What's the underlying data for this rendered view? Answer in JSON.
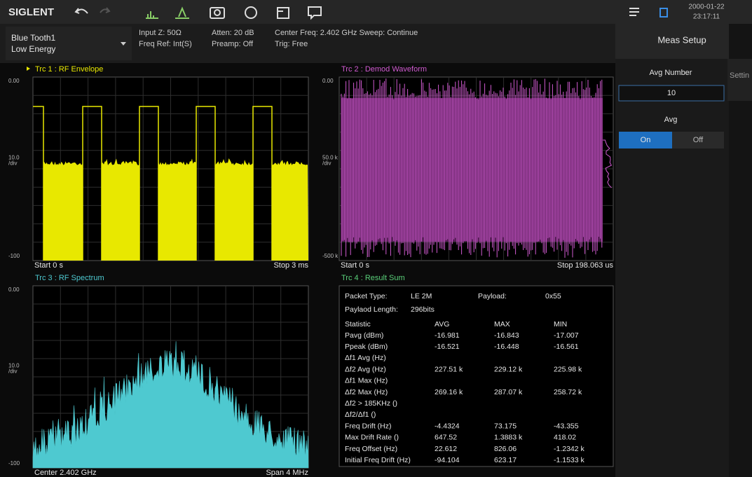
{
  "toolbar": {
    "brand": "SIGLENT",
    "date": "2000-01-22",
    "time": "23:17:11"
  },
  "info": {
    "mode": [
      "Blue Tooth1",
      "Low Energy"
    ],
    "items": [
      [
        "Input Z: 50Ω",
        "Freq Ref: Int(S)"
      ],
      [
        "Atten: 20 dB",
        "Preamp: Off"
      ],
      [
        "Center Freq: 2.402 GHz  Sweep: Continue",
        "Trig: Free"
      ]
    ]
  },
  "side": {
    "title": "Meas Setup",
    "tab": "Settin",
    "avg_number_label": "Avg Number",
    "avg_number": "10",
    "avg_label": "Avg",
    "on": "On",
    "off": "Off"
  },
  "traces": [
    {
      "title": "Trc 1 :  RF Envelope",
      "y_top": "0.00",
      "y_mid": [
        "10.0",
        "/div"
      ],
      "y_bottom": "-100",
      "x_left": "Start 0 s",
      "x_right": "Stop 3 ms"
    },
    {
      "title": "Trc 2 :  Demod Waveform",
      "y_top": "0.00",
      "y_mid": [
        "50.0 k",
        "/div"
      ],
      "y_bottom": "-500 k",
      "x_left": "Start 0 s",
      "x_right": "Stop 198.063 us"
    },
    {
      "title": "Trc 3 :  RF Spectrum",
      "y_top": "0.00",
      "y_mid": [
        "10.0",
        "/div"
      ],
      "y_bottom": "-100",
      "x_left": "Center 2.402 GHz",
      "x_right": "Span 4 MHz"
    }
  ],
  "result": {
    "title": "Trc 4 :  Result Sum",
    "packet_type_label": "Packet Type:",
    "packet_type": "LE 2M",
    "payload_label": "Payload:",
    "payload": "0x55",
    "length_label": "Paylaod Length:",
    "length": "296bits",
    "header": [
      "Statistic",
      "AVG",
      "MAX",
      "MIN"
    ],
    "rows": [
      [
        "Pavg (dBm)",
        "-16.981",
        "-16.843",
        "-17.007"
      ],
      [
        "Ppeak (dBm)",
        "-16.521",
        "-16.448",
        "-16.561"
      ],
      [
        "Δf1 Avg (Hz)"
      ],
      [
        "Δf2 Avg (Hz)",
        "227.51 k",
        "229.12 k",
        "225.98 k"
      ],
      [
        "Δf1 Max (Hz)"
      ],
      [
        "Δf2 Max (Hz)",
        "269.16 k",
        "287.07 k",
        "258.72 k"
      ],
      [
        "Δf2 > 185KHz ()"
      ],
      [
        "Δf2/Δf1 ()"
      ],
      [
        "Freq Drift (Hz)",
        "-4.4324",
        "73.175",
        "-43.355"
      ],
      [
        "Max Drift Rate ()",
        "647.52",
        "1.3883 k",
        "418.02"
      ],
      [
        "Freq Offset (Hz)",
        "22.612",
        "826.06",
        "-1.2342 k"
      ],
      [
        "Initial Freq Drift (Hz)",
        "-94.104",
        "623.17",
        "-1.1533 k"
      ]
    ]
  }
}
